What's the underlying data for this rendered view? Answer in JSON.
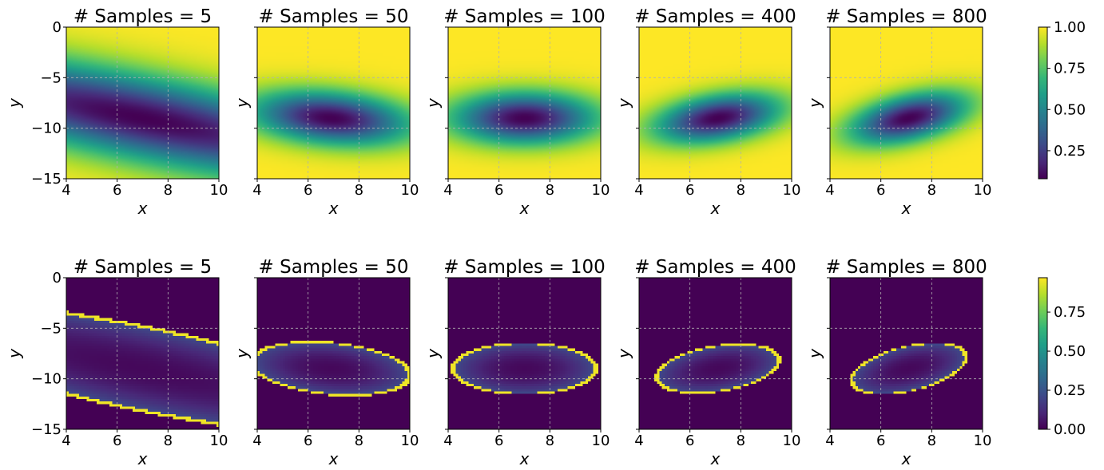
{
  "colormap": "viridis",
  "chart_data": [
    {
      "type": "heatmap",
      "row": 0,
      "panel": 0,
      "title": "# Samples = 5",
      "xlabel": "x",
      "ylabel": "y",
      "xlim": [
        4,
        10
      ],
      "ylim": [
        -15,
        0
      ],
      "xticks": [
        "4",
        "6",
        "8",
        "10"
      ],
      "yticks": [
        "0",
        "−5",
        "−10",
        "−15"
      ],
      "ellipse": {
        "center": [
          7,
          -9
        ],
        "angle_deg": -30,
        "radius_a": 12,
        "radius_b": 3.8
      },
      "field_range": [
        0.85,
        1.0
      ]
    },
    {
      "type": "heatmap",
      "row": 0,
      "panel": 1,
      "title": "# Samples = 50",
      "xlabel": "x",
      "ylabel": "y",
      "xlim": [
        4,
        10
      ],
      "ylim": [
        -15,
        0
      ],
      "xticks": [
        "4",
        "6",
        "8",
        "10"
      ],
      "ellipse": {
        "center": [
          6.9,
          -9
        ],
        "angle_deg": -28,
        "radius_a": 3.4,
        "radius_b": 2.5
      },
      "field_range": [
        0.08,
        1.0
      ]
    },
    {
      "type": "heatmap",
      "row": 0,
      "panel": 2,
      "title": "# Samples = 100",
      "xlabel": "x",
      "ylabel": "y",
      "xlim": [
        4,
        10
      ],
      "ylim": [
        -15,
        0
      ],
      "xticks": [
        "4",
        "6",
        "8",
        "10"
      ],
      "ellipse": {
        "center": [
          7,
          -9
        ],
        "angle_deg": 0,
        "radius_a": 2.9,
        "radius_b": 2.6
      },
      "field_range": [
        0.08,
        1.0
      ]
    },
    {
      "type": "heatmap",
      "row": 0,
      "panel": 3,
      "title": "# Samples = 400",
      "xlabel": "x",
      "ylabel": "y",
      "xlim": [
        4,
        10
      ],
      "ylim": [
        -15,
        0
      ],
      "xticks": [
        "4",
        "6",
        "8",
        "10"
      ],
      "ellipse": {
        "center": [
          7.1,
          -9
        ],
        "angle_deg": 45,
        "radius_a": 2.9,
        "radius_b": 2.0
      },
      "field_range": [
        0.08,
        1.0
      ]
    },
    {
      "type": "heatmap",
      "row": 0,
      "panel": 4,
      "title": "# Samples = 800",
      "xlabel": "x",
      "ylabel": "y",
      "xlim": [
        4,
        10
      ],
      "ylim": [
        -15,
        0
      ],
      "xticks": [
        "4",
        "6",
        "8",
        "10"
      ],
      "ellipse": {
        "center": [
          7.1,
          -9
        ],
        "angle_deg": 52,
        "radius_a": 3.0,
        "radius_b": 1.8
      },
      "field_range": [
        0.08,
        1.0
      ]
    },
    {
      "type": "heatmap",
      "row": 1,
      "panel": 0,
      "title": "# Samples = 5",
      "xlabel": "x",
      "ylabel": "y",
      "xlim": [
        4,
        10
      ],
      "ylim": [
        -15,
        0
      ],
      "xticks": [
        "4",
        "6",
        "8",
        "10"
      ],
      "yticks": [
        "0",
        "−5",
        "−10",
        "−15"
      ],
      "ellipse": {
        "center": [
          7,
          -9
        ],
        "angle_deg": -30,
        "radius_a": 12,
        "radius_b": 3.8
      },
      "field_range": [
        0.0,
        0.97
      ]
    },
    {
      "type": "heatmap",
      "row": 1,
      "panel": 1,
      "title": "# Samples = 50",
      "xlabel": "x",
      "ylabel": "y",
      "xlim": [
        4,
        10
      ],
      "ylim": [
        -15,
        0
      ],
      "xticks": [
        "4",
        "6",
        "8",
        "10"
      ],
      "ellipse": {
        "center": [
          6.9,
          -9
        ],
        "angle_deg": -28,
        "radius_a": 3.4,
        "radius_b": 2.5
      },
      "field_range": [
        0.0,
        0.97
      ]
    },
    {
      "type": "heatmap",
      "row": 1,
      "panel": 2,
      "title": "# Samples = 100",
      "xlabel": "x",
      "ylabel": "y",
      "xlim": [
        4,
        10
      ],
      "ylim": [
        -15,
        0
      ],
      "xticks": [
        "4",
        "6",
        "8",
        "10"
      ],
      "ellipse": {
        "center": [
          7,
          -9
        ],
        "angle_deg": 0,
        "radius_a": 2.9,
        "radius_b": 2.6
      },
      "field_range": [
        0.0,
        0.97
      ]
    },
    {
      "type": "heatmap",
      "row": 1,
      "panel": 3,
      "title": "# Samples = 400",
      "xlabel": "x",
      "ylabel": "y",
      "xlim": [
        4,
        10
      ],
      "ylim": [
        -15,
        0
      ],
      "xticks": [
        "4",
        "6",
        "8",
        "10"
      ],
      "ellipse": {
        "center": [
          7.1,
          -9
        ],
        "angle_deg": 45,
        "radius_a": 2.9,
        "radius_b": 2.0
      },
      "field_range": [
        0.0,
        0.97
      ]
    },
    {
      "type": "heatmap",
      "row": 1,
      "panel": 4,
      "title": "# Samples = 800",
      "xlabel": "x",
      "ylabel": "y",
      "xlim": [
        4,
        10
      ],
      "ylim": [
        -15,
        0
      ],
      "xticks": [
        "4",
        "6",
        "8",
        "10"
      ],
      "ellipse": {
        "center": [
          7.1,
          -9
        ],
        "angle_deg": 52,
        "radius_a": 3.0,
        "radius_b": 1.8
      },
      "field_range": [
        0.0,
        0.97
      ]
    }
  ],
  "colorbars": [
    {
      "row": 0,
      "range": [
        0.08,
        1.0
      ],
      "ticks": [
        0.25,
        0.5,
        0.75,
        1.0
      ],
      "tick_labels": [
        "0.25",
        "0.50",
        "0.75",
        "1.00"
      ]
    },
    {
      "row": 1,
      "range": [
        0.0,
        0.97
      ],
      "ticks": [
        0.0,
        0.25,
        0.5,
        0.75
      ],
      "tick_labels": [
        "0.00",
        "0.25",
        "0.50",
        "0.75"
      ]
    }
  ]
}
